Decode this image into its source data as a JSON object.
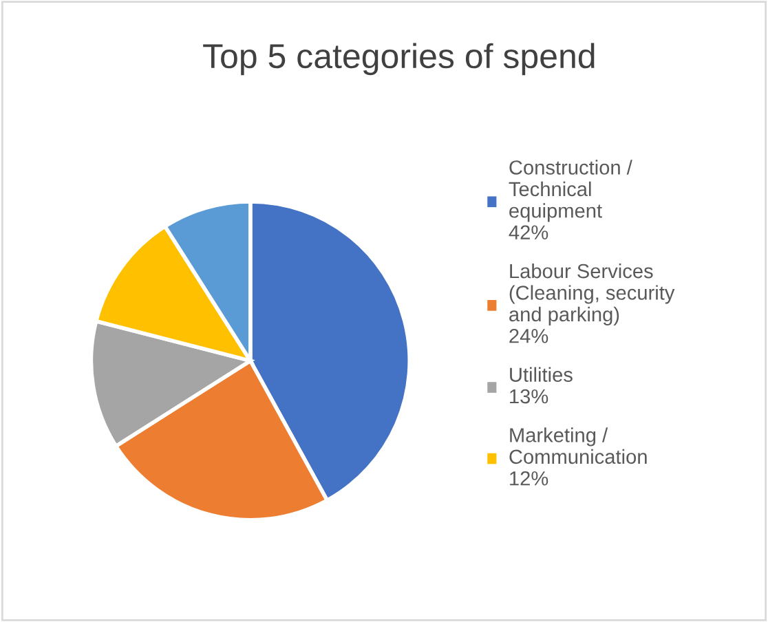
{
  "chart_data": {
    "type": "pie",
    "title": "Top 5 categories of spend",
    "categories": [
      "Construction /\nTechnical\nequipment",
      "Labour Services\n(Cleaning, security\nand parking)",
      "Utilities",
      "Marketing /\nCommunication",
      null
    ],
    "values": [
      42,
      24,
      13,
      12,
      9
    ],
    "value_labels": [
      "42%",
      "24%",
      "13%",
      "12%",
      null
    ],
    "colors": [
      "#4472c4",
      "#ed7d31",
      "#a5a5a5",
      "#ffc000",
      "#5b9bd5"
    ],
    "legend": "right"
  }
}
